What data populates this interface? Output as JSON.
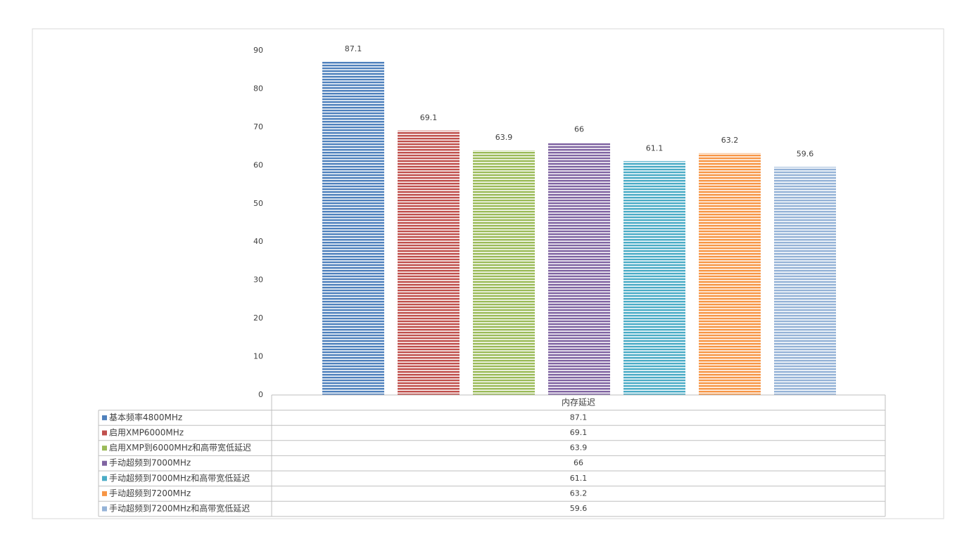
{
  "chart_data": {
    "type": "bar",
    "categories": [
      "内存延迟"
    ],
    "series": [
      {
        "name": "基本频率4800MHz",
        "color": "#4f81bd",
        "values": [
          87.1
        ]
      },
      {
        "name": "启用XMP6000MHz",
        "color": "#c0504d",
        "values": [
          69.1
        ]
      },
      {
        "name": "启用XMP到6000MHz和高带宽低延迟",
        "color": "#9bbb59",
        "values": [
          63.9
        ]
      },
      {
        "name": "手动超频到7000MHz",
        "color": "#8064a2",
        "values": [
          66
        ]
      },
      {
        "name": "手动超频到7000MHz和高带宽低延迟",
        "color": "#4bacc6",
        "values": [
          61.1
        ]
      },
      {
        "name": "手动超频到7200MHz",
        "color": "#f79646",
        "values": [
          63.2
        ]
      },
      {
        "name": "手动超频到7200MHz和高带宽低延迟",
        "color": "#95b3d7",
        "values": [
          59.6
        ]
      }
    ],
    "ylim": [
      0,
      90
    ],
    "yticks": [
      0,
      10,
      20,
      30,
      40,
      50,
      60,
      70,
      80,
      90
    ],
    "grid": false,
    "data_table": true
  }
}
